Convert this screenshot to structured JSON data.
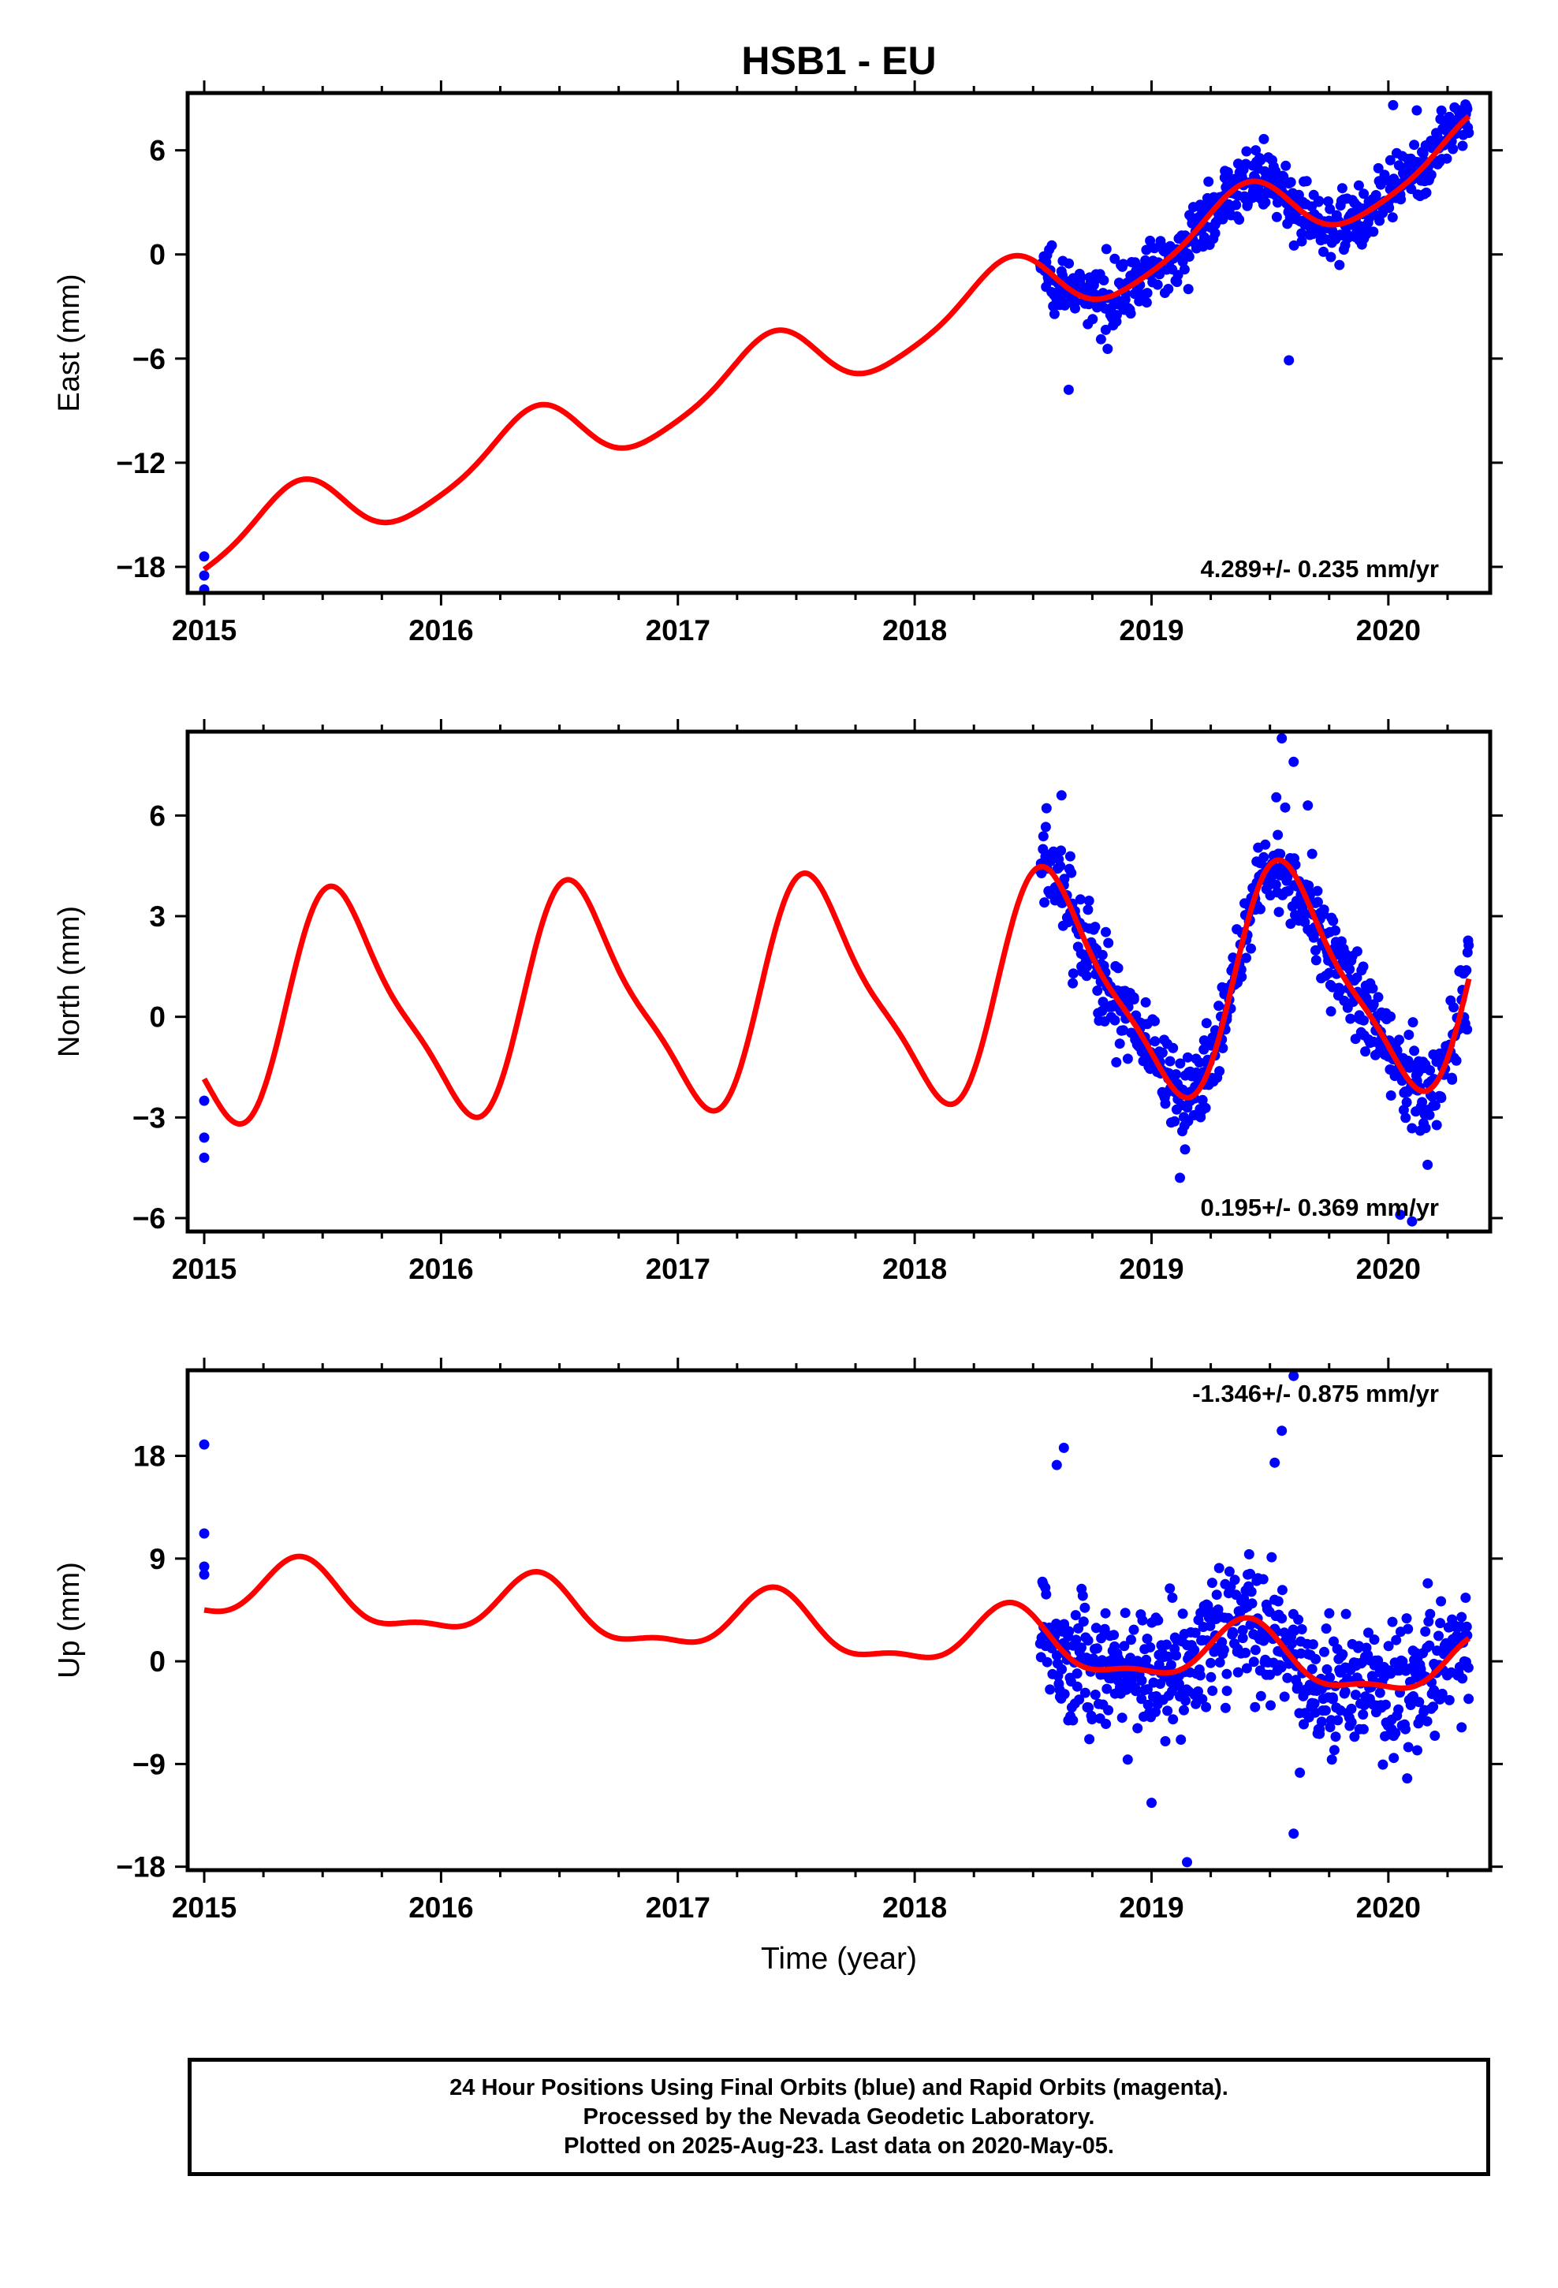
{
  "figure": {
    "title": "HSB1 - EU",
    "caption": [
      "24 Hour Positions Using Final Orbits (blue) and Rapid Orbits (magenta).",
      "Processed by the Nevada Geodetic Laboratory.",
      "Plotted on 2025-Aug-23. Last data on 2020-May-05."
    ]
  },
  "colors": {
    "points": "#0000ff",
    "fit": "#ff0000",
    "frame": "#000000"
  },
  "chart_data": [
    {
      "type": "scatter",
      "title": "HSB1 - EU",
      "ylabel": "East (mm)",
      "xlabel": "",
      "xlim": [
        2014.93,
        2020.43
      ],
      "ylim": [
        -19.5,
        9.3
      ],
      "xticks": [
        2015,
        2016,
        2017,
        2018,
        2019,
        2020
      ],
      "xtick_labels": [
        "2015",
        "2016",
        "2017",
        "2018",
        "2019",
        "2020"
      ],
      "yticks": [
        -18,
        -12,
        -6,
        0,
        6
      ],
      "ytick_labels": [
        "−18",
        "−12",
        "−6",
        "0",
        "6"
      ],
      "annotation": "4.289+/- 0.235 mm/yr",
      "annotation_position": "bottom-right",
      "grid": false,
      "model": {
        "t0": 2015.0,
        "offset": -17.0,
        "rate": 4.289,
        "cos_annual": -1.4,
        "sin_annual": 1.4,
        "cos_semi": 0.25,
        "sin_semi": -0.25
      },
      "fit_range": [
        2015.0,
        2020.34
      ],
      "data_range": [
        2018.53,
        2020.34
      ],
      "early_points": [
        [
          2015.0,
          -17.4
        ],
        [
          2015.0,
          -18.5
        ],
        [
          2015.0,
          -19.3
        ]
      ],
      "noise_sd": 0.85,
      "points_count": 620,
      "outliers": [
        [
          2019.58,
          -6.1
        ],
        [
          2020.02,
          8.6
        ],
        [
          2020.12,
          8.3
        ],
        [
          2020.22,
          7.8
        ],
        [
          2018.65,
          -7.8
        ]
      ],
      "series": [
        {
          "name": "",
          "role": "daily positions (Final Orbits)"
        },
        {
          "name": "",
          "role": "model fit"
        }
      ]
    },
    {
      "type": "scatter",
      "ylabel": "North (mm)",
      "xlabel": "",
      "xlim": [
        2014.93,
        2020.43
      ],
      "ylim": [
        -6.4,
        8.5
      ],
      "xticks": [
        2015,
        2016,
        2017,
        2018,
        2019,
        2020
      ],
      "xtick_labels": [
        "2015",
        "2016",
        "2017",
        "2018",
        "2019",
        "2020"
      ],
      "yticks": [
        -6,
        -3,
        0,
        3,
        6
      ],
      "ytick_labels": [
        "−6",
        "−3",
        "0",
        "3",
        "6"
      ],
      "annotation": "0.195+/- 0.369 mm/yr",
      "annotation_position": "bottom-right",
      "grid": false,
      "model": {
        "t0": 2015.0,
        "offset": 0.15,
        "rate": 0.195,
        "cos_annual": -2.75,
        "sin_annual": -1.65,
        "cos_semi": 0.75,
        "sin_semi": -0.2
      },
      "fit_range": [
        2015.0,
        2020.34
      ],
      "data_range": [
        2018.53,
        2020.34
      ],
      "early_points": [
        [
          2015.0,
          -2.5
        ],
        [
          2015.0,
          -3.6
        ],
        [
          2015.0,
          -4.2
        ]
      ],
      "noise_sd": 0.7,
      "points_count": 620,
      "outliers": [
        [
          2019.55,
          8.3
        ],
        [
          2019.6,
          7.6
        ],
        [
          2019.66,
          6.3
        ],
        [
          2018.62,
          6.6
        ],
        [
          2020.05,
          -5.9
        ],
        [
          2020.1,
          -6.1
        ],
        [
          2019.12,
          -4.8
        ]
      ],
      "series": [
        {
          "name": "",
          "role": "daily positions (Final Orbits)"
        },
        {
          "name": "",
          "role": "model fit"
        }
      ]
    },
    {
      "type": "scatter",
      "ylabel": "Up (mm)",
      "xlabel": "Time (year)",
      "xlim": [
        2014.93,
        2020.43
      ],
      "ylim": [
        -18.3,
        25.5
      ],
      "xticks": [
        2015,
        2016,
        2017,
        2018,
        2019,
        2020
      ],
      "xtick_labels": [
        "2015",
        "2016",
        "2017",
        "2018",
        "2019",
        "2020"
      ],
      "yticks": [
        -18,
        -9,
        0,
        9,
        18
      ],
      "ytick_labels": [
        "−18",
        "−9",
        "0",
        "9",
        "18"
      ],
      "annotation": "-1.346+/- 0.875 mm/yr",
      "annotation_position": "top-right",
      "grid": false,
      "model": {
        "t0": 2015.0,
        "offset": 6.2,
        "rate": -1.346,
        "cos_annual": -2.1,
        "sin_annual": 1.45,
        "cos_semi": 0.4,
        "sin_semi": -0.9
      },
      "fit_range": [
        2015.0,
        2020.34
      ],
      "data_range": [
        2018.53,
        2020.34
      ],
      "early_points": [
        [
          2015.0,
          19.0
        ],
        [
          2015.0,
          11.2
        ],
        [
          2015.0,
          8.3
        ],
        [
          2015.0,
          7.6
        ]
      ],
      "noise_sd": 2.8,
      "points_count": 620,
      "outliers": [
        [
          2019.6,
          25.0
        ],
        [
          2019.55,
          20.2
        ],
        [
          2019.15,
          -17.6
        ],
        [
          2019.6,
          -15.1
        ],
        [
          2018.63,
          18.7
        ],
        [
          2018.6,
          17.2
        ],
        [
          2019.0,
          -12.4
        ],
        [
          2019.52,
          17.4
        ]
      ],
      "series": [
        {
          "name": "",
          "role": "daily positions (Final Orbits)"
        },
        {
          "name": "",
          "role": "model fit"
        }
      ]
    }
  ]
}
